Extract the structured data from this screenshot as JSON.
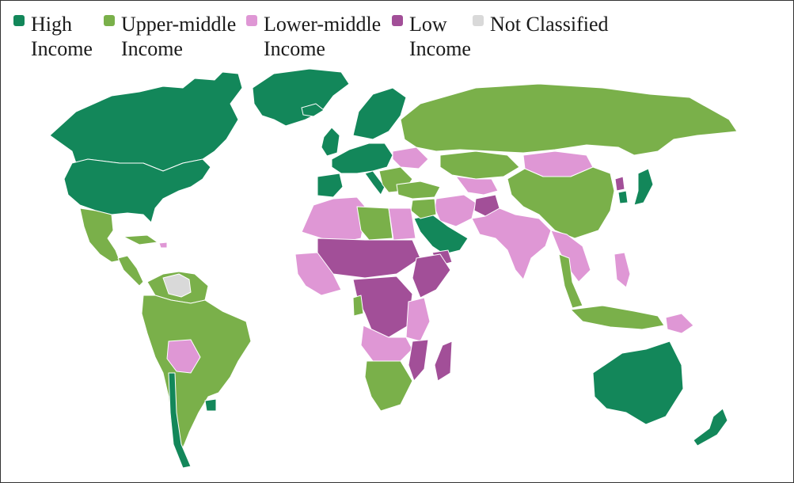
{
  "legend": [
    {
      "label": "High\nIncome",
      "color": "#13875a"
    },
    {
      "label": "Upper-middle\nIncome",
      "color": "#7ab04a"
    },
    {
      "label": "Lower-middle\nIncome",
      "color": "#df97d5"
    },
    {
      "label": "Low\nIncome",
      "color": "#a24f98"
    },
    {
      "label": "Not Classified",
      "color": "#d9d9d9"
    }
  ],
  "regions": [
    {
      "name": "canada-alaska",
      "category": "high"
    },
    {
      "name": "greenland",
      "category": "high"
    },
    {
      "name": "usa",
      "category": "high"
    },
    {
      "name": "mexico",
      "category": "upper-middle"
    },
    {
      "name": "central-america",
      "category": "upper-middle"
    },
    {
      "name": "cuba-caribbean",
      "category": "upper-middle"
    },
    {
      "name": "venezuela-guianas",
      "category": "upper-middle"
    },
    {
      "name": "haiti",
      "category": "lower-middle"
    },
    {
      "name": "south-america",
      "category": "upper-middle"
    },
    {
      "name": "bolivia",
      "category": "lower-middle"
    },
    {
      "name": "chile",
      "category": "high"
    },
    {
      "name": "uruguay",
      "category": "high"
    },
    {
      "name": "not-classified-venezuela",
      "category": "not-classified"
    },
    {
      "name": "iceland",
      "category": "high"
    },
    {
      "name": "ireland-uk",
      "category": "high"
    },
    {
      "name": "scandinavia",
      "category": "high"
    },
    {
      "name": "western-europe",
      "category": "high"
    },
    {
      "name": "iberia",
      "category": "high"
    },
    {
      "name": "italy",
      "category": "high"
    },
    {
      "name": "eastern-europe",
      "category": "upper-middle"
    },
    {
      "name": "ukraine",
      "category": "lower-middle"
    },
    {
      "name": "turkey",
      "category": "upper-middle"
    },
    {
      "name": "russia",
      "category": "upper-middle"
    },
    {
      "name": "kazakhstan",
      "category": "upper-middle"
    },
    {
      "name": "central-asia",
      "category": "lower-middle"
    },
    {
      "name": "mongolia",
      "category": "lower-middle"
    },
    {
      "name": "china",
      "category": "upper-middle"
    },
    {
      "name": "north-korea",
      "category": "low"
    },
    {
      "name": "south-korea",
      "category": "high"
    },
    {
      "name": "japan",
      "category": "high"
    },
    {
      "name": "iran",
      "category": "lower-middle"
    },
    {
      "name": "afghanistan",
      "category": "low"
    },
    {
      "name": "pakistan-india",
      "category": "lower-middle"
    },
    {
      "name": "arabian-peninsula",
      "category": "high"
    },
    {
      "name": "iraq-levant",
      "category": "upper-middle"
    },
    {
      "name": "yemen",
      "category": "low"
    },
    {
      "name": "myanmar-indochina",
      "category": "lower-middle"
    },
    {
      "name": "thailand-malaysia",
      "category": "upper-middle"
    },
    {
      "name": "philippines",
      "category": "lower-middle"
    },
    {
      "name": "indonesia",
      "category": "upper-middle"
    },
    {
      "name": "papua-new-guinea",
      "category": "lower-middle"
    },
    {
      "name": "north-africa",
      "category": "lower-middle"
    },
    {
      "name": "libya",
      "category": "upper-middle"
    },
    {
      "name": "egypt",
      "category": "lower-middle"
    },
    {
      "name": "sahel",
      "category": "low"
    },
    {
      "name": "west-africa",
      "category": "lower-middle"
    },
    {
      "name": "horn-of-africa",
      "category": "low"
    },
    {
      "name": "central-africa",
      "category": "low"
    },
    {
      "name": "east-africa",
      "category": "lower-middle"
    },
    {
      "name": "angola-zambia",
      "category": "lower-middle"
    },
    {
      "name": "gabon",
      "category": "upper-middle"
    },
    {
      "name": "mozambique",
      "category": "low"
    },
    {
      "name": "madagascar",
      "category": "low"
    },
    {
      "name": "southern-africa",
      "category": "upper-middle"
    },
    {
      "name": "australia",
      "category": "high"
    },
    {
      "name": "new-zealand",
      "category": "high"
    }
  ]
}
